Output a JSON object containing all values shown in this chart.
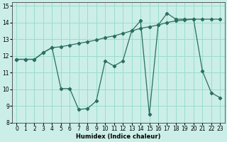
{
  "xlabel": "Humidex (Indice chaleur)",
  "xlim": [
    -0.5,
    23.5
  ],
  "ylim": [
    8,
    15.2
  ],
  "yticks": [
    8,
    9,
    10,
    11,
    12,
    13,
    14,
    15
  ],
  "xticks": [
    0,
    1,
    2,
    3,
    4,
    5,
    6,
    7,
    8,
    9,
    10,
    11,
    12,
    13,
    14,
    15,
    16,
    17,
    18,
    19,
    20,
    21,
    22,
    23
  ],
  "bg_color": "#cceee8",
  "grid_color": "#99ddcc",
  "line_color": "#2a6e62",
  "line1_x": [
    0,
    1,
    2,
    3,
    4,
    5,
    6,
    7,
    8,
    9,
    10,
    11,
    12,
    13,
    14,
    15,
    16,
    17,
    18,
    19,
    20,
    21,
    22,
    23
  ],
  "line1_y": [
    11.8,
    11.8,
    11.8,
    12.2,
    12.5,
    10.05,
    10.05,
    8.8,
    8.85,
    9.3,
    11.7,
    11.4,
    11.7,
    13.5,
    14.1,
    8.5,
    13.85,
    14.55,
    14.2,
    14.2,
    14.2,
    11.1,
    9.8,
    9.5
  ],
  "line2_x": [
    0,
    1,
    2,
    3,
    4,
    5,
    6,
    7,
    8,
    9,
    10,
    11,
    12,
    13,
    14,
    15,
    16,
    17,
    18,
    19,
    20,
    21,
    22,
    23
  ],
  "line2_y": [
    11.8,
    11.8,
    11.8,
    12.2,
    12.5,
    12.55,
    12.65,
    12.75,
    12.85,
    12.95,
    13.1,
    13.2,
    13.35,
    13.5,
    13.65,
    13.75,
    13.85,
    14.0,
    14.1,
    14.15,
    14.2,
    14.2,
    14.2,
    14.2
  ]
}
